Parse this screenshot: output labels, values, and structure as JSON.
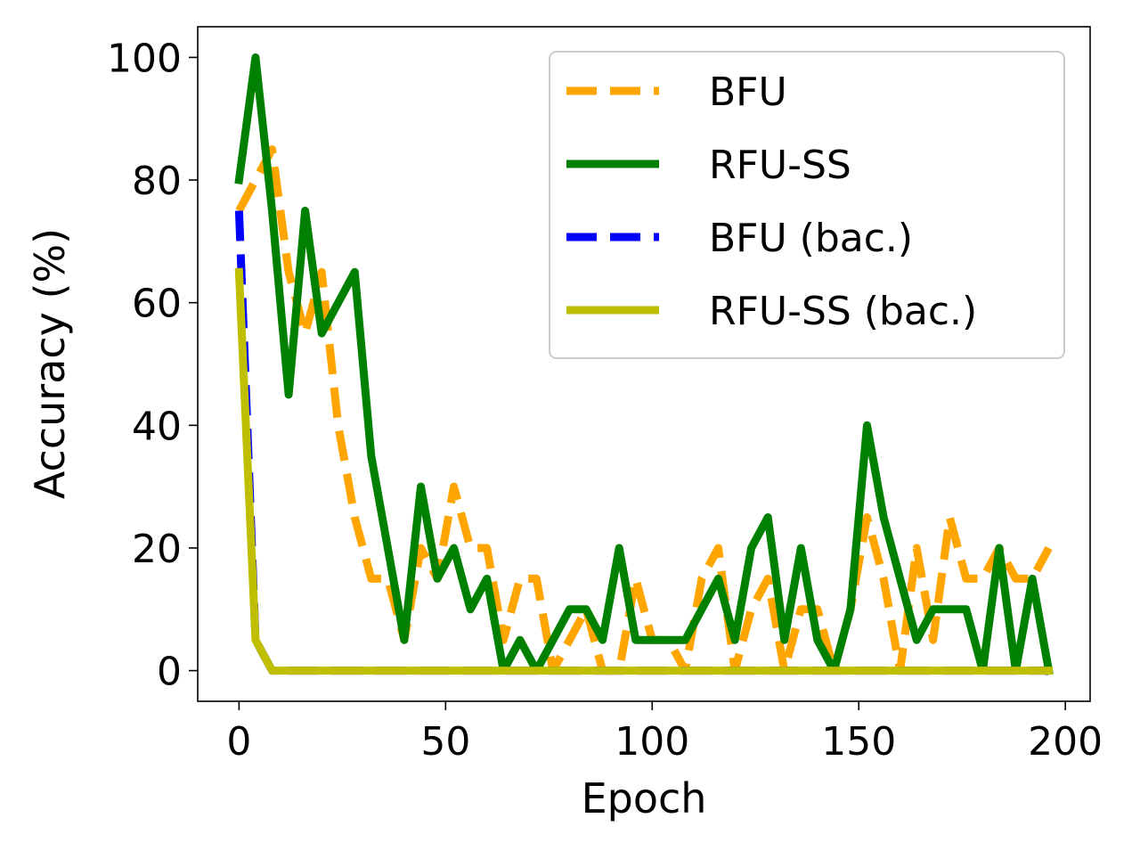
{
  "chart_data": {
    "type": "line",
    "title": "",
    "xlabel": "Epoch",
    "ylabel": "Accuracy (%)",
    "xlim": [
      -10,
      206
    ],
    "ylim": [
      -5,
      105
    ],
    "xticks": [
      0,
      50,
      100,
      150,
      200
    ],
    "yticks": [
      0,
      20,
      40,
      60,
      80,
      100
    ],
    "grid": false,
    "legend_position": "top-right",
    "x": [
      0,
      4,
      8,
      12,
      16,
      20,
      24,
      28,
      32,
      36,
      40,
      44,
      48,
      52,
      56,
      60,
      64,
      68,
      72,
      76,
      80,
      84,
      88,
      92,
      96,
      100,
      104,
      108,
      112,
      116,
      120,
      124,
      128,
      132,
      136,
      140,
      144,
      148,
      152,
      156,
      160,
      164,
      168,
      172,
      176,
      180,
      184,
      188,
      192,
      196
    ],
    "series": [
      {
        "name": "BFU",
        "color": "#FFA500",
        "dash": "dashed",
        "values": [
          75,
          80,
          85,
          65,
          55,
          65,
          40,
          25,
          15,
          15,
          5,
          20,
          15,
          30,
          20,
          20,
          5,
          15,
          15,
          0,
          5,
          10,
          0,
          0,
          15,
          5,
          5,
          0,
          15,
          20,
          0,
          10,
          15,
          0,
          10,
          10,
          0,
          10,
          25,
          15,
          0,
          20,
          5,
          25,
          15,
          15,
          20,
          15,
          15,
          20
        ]
      },
      {
        "name": "RFU-SS",
        "color": "#008000",
        "dash": "solid",
        "values": [
          80,
          100,
          75,
          45,
          75,
          55,
          60,
          65,
          35,
          20,
          5,
          30,
          15,
          20,
          10,
          15,
          0,
          5,
          0,
          5,
          10,
          10,
          5,
          20,
          5,
          5,
          5,
          5,
          10,
          15,
          5,
          20,
          25,
          5,
          20,
          5,
          0,
          10,
          40,
          25,
          15,
          5,
          10,
          10,
          10,
          0,
          20,
          0,
          15,
          0
        ]
      },
      {
        "name": "BFU (bac.)",
        "color": "#0000FF",
        "dash": "dashed",
        "values": [
          75,
          5,
          0,
          0,
          0,
          0,
          0,
          0,
          0,
          0,
          0,
          0,
          0,
          0,
          0,
          0,
          0,
          0,
          0,
          0,
          0,
          0,
          0,
          0,
          0,
          0,
          0,
          0,
          0,
          0,
          0,
          0,
          0,
          0,
          0,
          0,
          0,
          0,
          0,
          0,
          0,
          0,
          0,
          0,
          0,
          0,
          0,
          0,
          0,
          0
        ]
      },
      {
        "name": "RFU-SS (bac.)",
        "color": "#BFBF00",
        "dash": "solid",
        "values": [
          65,
          5,
          0,
          0,
          0,
          0,
          0,
          0,
          0,
          0,
          0,
          0,
          0,
          0,
          0,
          0,
          0,
          0,
          0,
          0,
          0,
          0,
          0,
          0,
          0,
          0,
          0,
          0,
          0,
          0,
          0,
          0,
          0,
          0,
          0,
          0,
          0,
          0,
          0,
          0,
          0,
          0,
          0,
          0,
          0,
          0,
          0,
          0,
          0,
          0
        ]
      }
    ]
  }
}
